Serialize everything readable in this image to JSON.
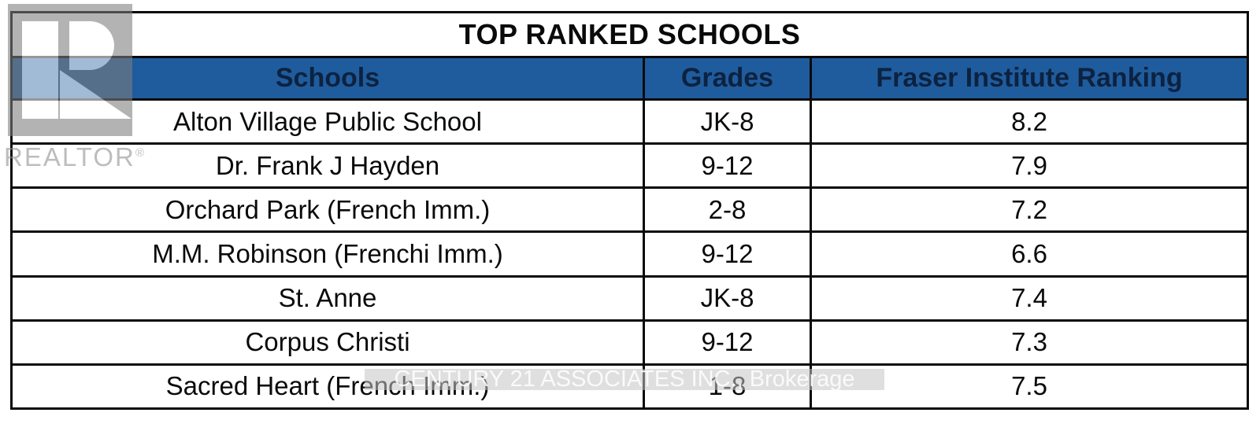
{
  "chart_data": {
    "type": "table",
    "title": "TOP RANKED SCHOOLS",
    "columns": [
      "Schools",
      "Grades",
      "Fraser Institute Ranking"
    ],
    "rows": [
      [
        "Alton Village Public School",
        "JK-8",
        "8.2"
      ],
      [
        "Dr. Frank J Hayden",
        "9-12",
        "7.9"
      ],
      [
        "Orchard Park (French Imm.)",
        "2-8",
        "7.2"
      ],
      [
        "M.M. Robinson (Frenchi Imm.)",
        "9-12",
        "6.6"
      ],
      [
        "St. Anne",
        "JK-8",
        "7.4"
      ],
      [
        "Corpus Christi",
        "9-12",
        "7.3"
      ],
      [
        "Sacred Heart (French Imm.)",
        "1-8",
        "7.5"
      ]
    ],
    "layout": {
      "grid": "on",
      "header_row": true,
      "title_row_merged": true
    }
  },
  "watermarks": {
    "realtor_word": "REALTOR",
    "realtor_reg": "®",
    "brokerage": "CENTURY 21 ASSOCIATES INC., Brokerage"
  },
  "colors": {
    "header_bg": "#1f5c9d",
    "header_text": "#0d2240",
    "border": "#0a0a0a",
    "body_text": "#0a0a0a",
    "watermark_gray": "#8f8f8f"
  }
}
